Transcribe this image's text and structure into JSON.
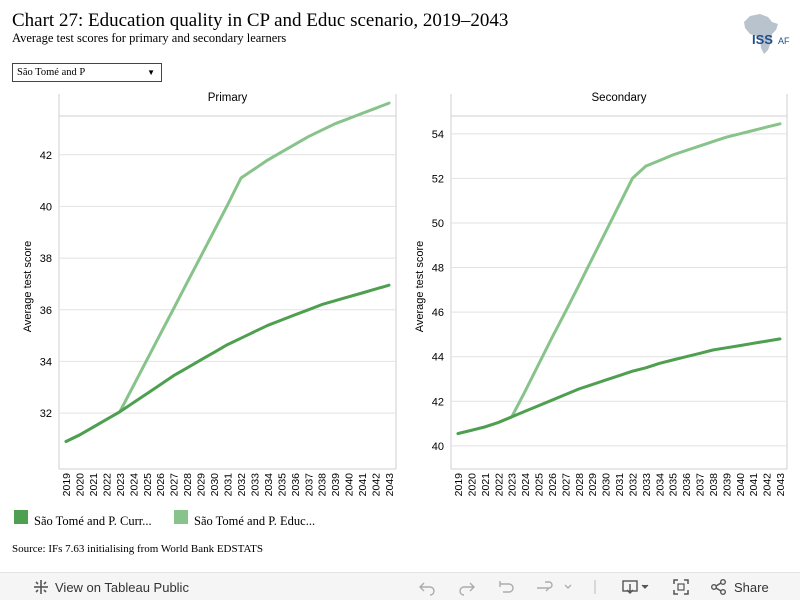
{
  "header": {
    "title": "Chart 27: Education quality in CP and Educ scenario, 2019–2043",
    "subtitle": "Average test scores for primary and secondary learners",
    "logo_text": "ISS",
    "logo_text_small": "AF"
  },
  "filter": {
    "selected": "São Tomé and P"
  },
  "chart_data": [
    {
      "type": "line",
      "title": "Primary",
      "ylabel": "Average test score",
      "x": [
        2019,
        2020,
        2021,
        2022,
        2023,
        2024,
        2025,
        2026,
        2027,
        2028,
        2029,
        2030,
        2031,
        2032,
        2033,
        2034,
        2035,
        2036,
        2037,
        2038,
        2039,
        2040,
        2041,
        2042,
        2043
      ],
      "yticks": [
        32,
        34,
        36,
        38,
        40,
        42
      ],
      "ylim": [
        30.3,
        43.5
      ],
      "series": [
        {
          "name": "São Tomé and P. Curr...",
          "color": "#4e9f50",
          "values": [
            30.9,
            31.15,
            31.45,
            31.75,
            32.05,
            32.4,
            32.75,
            33.1,
            33.45,
            33.75,
            34.05,
            34.35,
            34.65,
            34.9,
            35.15,
            35.4,
            35.6,
            35.8,
            36.0,
            36.2,
            36.35,
            36.5,
            36.65,
            36.8,
            36.95
          ]
        },
        {
          "name": "São Tomé and P. Educ...",
          "color": "#87c38a",
          "values": [
            30.9,
            31.15,
            31.45,
            31.75,
            32.05,
            33.05,
            34.05,
            35.05,
            36.05,
            37.05,
            38.05,
            39.05,
            40.05,
            41.1,
            41.45,
            41.8,
            42.1,
            42.4,
            42.7,
            42.95,
            43.2,
            43.4,
            43.6,
            43.8,
            44.0
          ]
        }
      ]
    },
    {
      "type": "line",
      "title": "Secondary",
      "ylabel": "Average test score",
      "x": [
        2019,
        2020,
        2021,
        2022,
        2023,
        2024,
        2025,
        2026,
        2027,
        2028,
        2029,
        2030,
        2031,
        2032,
        2033,
        2034,
        2035,
        2036,
        2037,
        2038,
        2039,
        2040,
        2041,
        2042,
        2043
      ],
      "yticks": [
        40,
        42,
        44,
        46,
        48,
        50,
        52,
        54
      ],
      "ylim": [
        39.5,
        54.8
      ],
      "series": [
        {
          "name": "São Tomé and P. Curr...",
          "color": "#4e9f50",
          "values": [
            40.55,
            40.7,
            40.85,
            41.05,
            41.3,
            41.55,
            41.8,
            42.05,
            42.3,
            42.55,
            42.75,
            42.95,
            43.15,
            43.35,
            43.5,
            43.7,
            43.85,
            44.0,
            44.15,
            44.3,
            44.4,
            44.5,
            44.6,
            44.7,
            44.8
          ]
        },
        {
          "name": "São Tomé and P. Educ...",
          "color": "#87c38a",
          "values": [
            40.55,
            40.7,
            40.85,
            41.05,
            41.3,
            42.45,
            43.65,
            44.85,
            46.0,
            47.2,
            48.4,
            49.6,
            50.8,
            52.0,
            52.55,
            52.8,
            53.05,
            53.25,
            53.45,
            53.65,
            53.85,
            54.0,
            54.15,
            54.3,
            54.45
          ]
        }
      ]
    }
  ],
  "legend": [
    {
      "label": "São Tomé and P. Curr...",
      "color": "#4e9f50"
    },
    {
      "label": "São Tomé and P. Educ...",
      "color": "#87c38a"
    }
  ],
  "source": "Source: IFs 7.63 initialising from World Bank EDSTATS",
  "toolbar": {
    "view_label": "View on Tableau Public",
    "share_label": "Share"
  }
}
